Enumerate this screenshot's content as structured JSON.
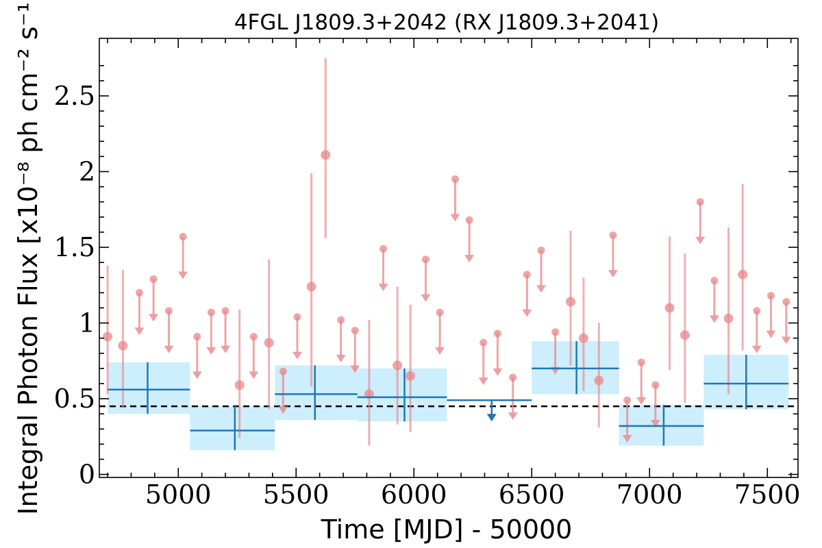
{
  "chart_data": {
    "type": "scatter",
    "title": "4FGL J1809.3+2042 (RX J1809.3+2041)",
    "xlabel": "Time [MJD] - 50000",
    "ylabel": "Integral Photon Flux [x10⁻⁸ ph cm⁻² s⁻¹]",
    "xlim": [
      4665,
      7630
    ],
    "ylim": [
      -0.02,
      2.88
    ],
    "x_ticks": [
      5000,
      5500,
      6000,
      6500,
      7000,
      7500
    ],
    "y_ticks": [
      0,
      0.5,
      1,
      1.5,
      2,
      2.5
    ],
    "y_tick_labels": [
      "0",
      "0.5",
      "1",
      "1.5",
      "2",
      "2.5"
    ],
    "grid": false,
    "colors": {
      "short_bins": "#e8878a",
      "long_bins": "#1f77b4",
      "long_bin_band": "#cdeefc",
      "reference_line": "#000000"
    },
    "reference_line": {
      "y": 0.45,
      "style": "dashed"
    },
    "series": [
      {
        "bin_width_days": 61,
        "measurements": [
          {
            "x": 4700,
            "y": 0.91,
            "y_low": 0.53,
            "y_high": 1.38
          },
          {
            "x": 4765,
            "y": 0.85,
            "y_low": 0.44,
            "y_high": 1.35
          },
          {
            "x": 5260,
            "y": 0.59,
            "y_low": 0.24,
            "y_high": 1.09
          },
          {
            "x": 5385,
            "y": 0.87,
            "y_low": 0.43,
            "y_high": 1.42
          },
          {
            "x": 5565,
            "y": 1.24,
            "y_low": 0.58,
            "y_high": 1.99
          },
          {
            "x": 5625,
            "y": 2.11,
            "y_low": 1.56,
            "y_high": 2.75
          },
          {
            "x": 5810,
            "y": 0.53,
            "y_low": 0.19,
            "y_high": 1.02
          },
          {
            "x": 5930,
            "y": 0.72,
            "y_low": 0.33,
            "y_high": 1.24
          },
          {
            "x": 5985,
            "y": 0.65,
            "y_low": 0.28,
            "y_high": 1.12
          },
          {
            "x": 6665,
            "y": 1.14,
            "y_low": 0.72,
            "y_high": 1.61
          },
          {
            "x": 6720,
            "y": 0.9,
            "y_low": 0.55,
            "y_high": 1.3
          },
          {
            "x": 6785,
            "y": 0.62,
            "y_low": 0.31,
            "y_high": 1.0
          },
          {
            "x": 7085,
            "y": 1.1,
            "y_low": 0.69,
            "y_high": 1.57
          },
          {
            "x": 7150,
            "y": 0.92,
            "y_low": 0.47,
            "y_high": 1.46
          },
          {
            "x": 7335,
            "y": 1.03,
            "y_low": 0.53,
            "y_high": 1.63
          },
          {
            "x": 7395,
            "y": 1.32,
            "y_low": 0.82,
            "y_high": 1.92
          }
        ],
        "upper_limits": [
          {
            "x": 4835,
            "y": 1.2
          },
          {
            "x": 4895,
            "y": 1.29
          },
          {
            "x": 4960,
            "y": 1.08
          },
          {
            "x": 5020,
            "y": 1.57
          },
          {
            "x": 5080,
            "y": 0.91
          },
          {
            "x": 5140,
            "y": 1.07
          },
          {
            "x": 5200,
            "y": 1.08
          },
          {
            "x": 5320,
            "y": 0.91
          },
          {
            "x": 5445,
            "y": 0.68
          },
          {
            "x": 5505,
            "y": 1.04
          },
          {
            "x": 5690,
            "y": 1.02
          },
          {
            "x": 5750,
            "y": 0.95
          },
          {
            "x": 5870,
            "y": 1.49
          },
          {
            "x": 6050,
            "y": 1.42
          },
          {
            "x": 6110,
            "y": 1.07
          },
          {
            "x": 6175,
            "y": 1.95
          },
          {
            "x": 6235,
            "y": 1.68
          },
          {
            "x": 6295,
            "y": 0.87
          },
          {
            "x": 6355,
            "y": 0.93
          },
          {
            "x": 6420,
            "y": 0.64
          },
          {
            "x": 6480,
            "y": 1.32
          },
          {
            "x": 6540,
            "y": 1.48
          },
          {
            "x": 6600,
            "y": 0.94
          },
          {
            "x": 6845,
            "y": 1.58
          },
          {
            "x": 6905,
            "y": 0.49
          },
          {
            "x": 6965,
            "y": 0.74
          },
          {
            "x": 7025,
            "y": 0.59
          },
          {
            "x": 7215,
            "y": 1.8
          },
          {
            "x": 7275,
            "y": 1.28
          },
          {
            "x": 7455,
            "y": 1.08
          },
          {
            "x": 7515,
            "y": 1.18
          },
          {
            "x": 7580,
            "y": 1.14
          }
        ]
      },
      {
        "bins": [
          {
            "x_start": 4700,
            "x_end": 5050,
            "x": 4870,
            "y": 0.56,
            "y_low": 0.4,
            "y_high": 0.74
          },
          {
            "x_start": 5050,
            "x_end": 5410,
            "x": 5240,
            "y": 0.29,
            "y_low": 0.16,
            "y_high": 0.45
          },
          {
            "x_start": 5410,
            "x_end": 5760,
            "x": 5580,
            "y": 0.53,
            "y_low": 0.36,
            "y_high": 0.72
          },
          {
            "x_start": 5760,
            "x_end": 6140,
            "x": 5960,
            "y": 0.51,
            "y_low": 0.35,
            "y_high": 0.7
          },
          {
            "x_start": 6500,
            "x_end": 6870,
            "x": 6690,
            "y": 0.7,
            "y_low": 0.53,
            "y_high": 0.88
          },
          {
            "x_start": 6870,
            "x_end": 7230,
            "x": 7060,
            "y": 0.32,
            "y_low": 0.19,
            "y_high": 0.46
          },
          {
            "x_start": 7230,
            "x_end": 7590,
            "x": 7410,
            "y": 0.6,
            "y_low": 0.43,
            "y_high": 0.79
          }
        ],
        "upper_limits": [
          {
            "x_start": 6140,
            "x_end": 6500,
            "x": 6330,
            "y": 0.49
          }
        ]
      }
    ]
  }
}
